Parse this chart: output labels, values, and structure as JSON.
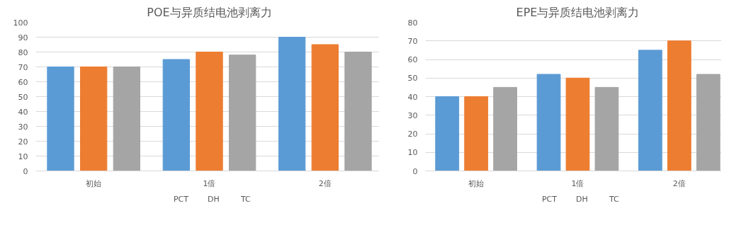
{
  "chart_data": [
    {
      "type": "bar",
      "title": "POE与异质结电池剥离力",
      "categories": [
        "初始",
        "1倍",
        "2倍"
      ],
      "ylim": [
        0,
        100
      ],
      "yticks": [
        0,
        10,
        20,
        30,
        40,
        50,
        60,
        70,
        80,
        90,
        100
      ],
      "grid": "y",
      "legend": "bottom",
      "series": [
        {
          "name": "PCT",
          "color": "#5b9bd5",
          "values": [
            70,
            75,
            90
          ]
        },
        {
          "name": "DH",
          "color": "#ed7d31",
          "values": [
            70,
            80,
            85
          ]
        },
        {
          "name": "TC",
          "color": "#a5a5a5",
          "values": [
            70,
            78,
            80
          ]
        }
      ]
    },
    {
      "type": "bar",
      "title": "EPE与异质结电池剥离力",
      "categories": [
        "初始",
        "1倍",
        "2倍"
      ],
      "ylim": [
        0,
        80
      ],
      "yticks": [
        0,
        10,
        20,
        30,
        40,
        50,
        60,
        70,
        80
      ],
      "grid": "y",
      "legend": "bottom",
      "series": [
        {
          "name": "PCT",
          "color": "#5b9bd5",
          "values": [
            40,
            52,
            65
          ]
        },
        {
          "name": "DH",
          "color": "#ed7d31",
          "values": [
            40,
            50,
            70
          ]
        },
        {
          "name": "TC",
          "color": "#a5a5a5",
          "values": [
            45,
            45,
            52
          ]
        }
      ]
    }
  ]
}
